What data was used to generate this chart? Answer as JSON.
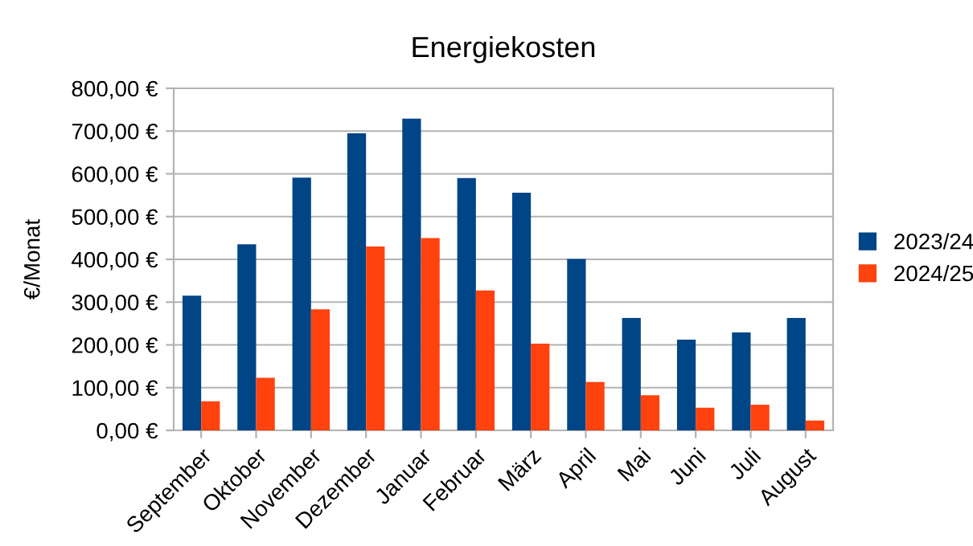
{
  "chart_data": {
    "type": "bar",
    "title": "Energiekosten",
    "ylabel": "€/Monat",
    "categories": [
      "September",
      "Oktober",
      "November",
      "Dezember",
      "Januar",
      "Februar",
      "März",
      "April",
      "Mai",
      "Juni",
      "Juli",
      "August"
    ],
    "series": [
      {
        "name": "2023/24",
        "color": "#004586",
        "values": [
          315,
          435,
          591,
          695,
          729,
          590,
          556,
          401,
          263,
          212,
          229,
          263
        ]
      },
      {
        "name": "2024/25",
        "color": "#ff420e",
        "values": [
          68,
          123,
          283,
          430,
          450,
          327,
          203,
          113,
          82,
          53,
          60,
          23
        ]
      }
    ],
    "ylim": [
      0,
      800
    ],
    "yticks": [
      {
        "value": 0,
        "label": "0,00 €"
      },
      {
        "value": 100,
        "label": "100,00 €"
      },
      {
        "value": 200,
        "label": "200,00 €"
      },
      {
        "value": 300,
        "label": "300,00 €"
      },
      {
        "value": 400,
        "label": "400,00 €"
      },
      {
        "value": 500,
        "label": "500,00 €"
      },
      {
        "value": 600,
        "label": "600,00 €"
      },
      {
        "value": 700,
        "label": "700,00 €"
      },
      {
        "value": 800,
        "label": "800,00 €"
      }
    ],
    "grid": "y",
    "legend": "right"
  }
}
